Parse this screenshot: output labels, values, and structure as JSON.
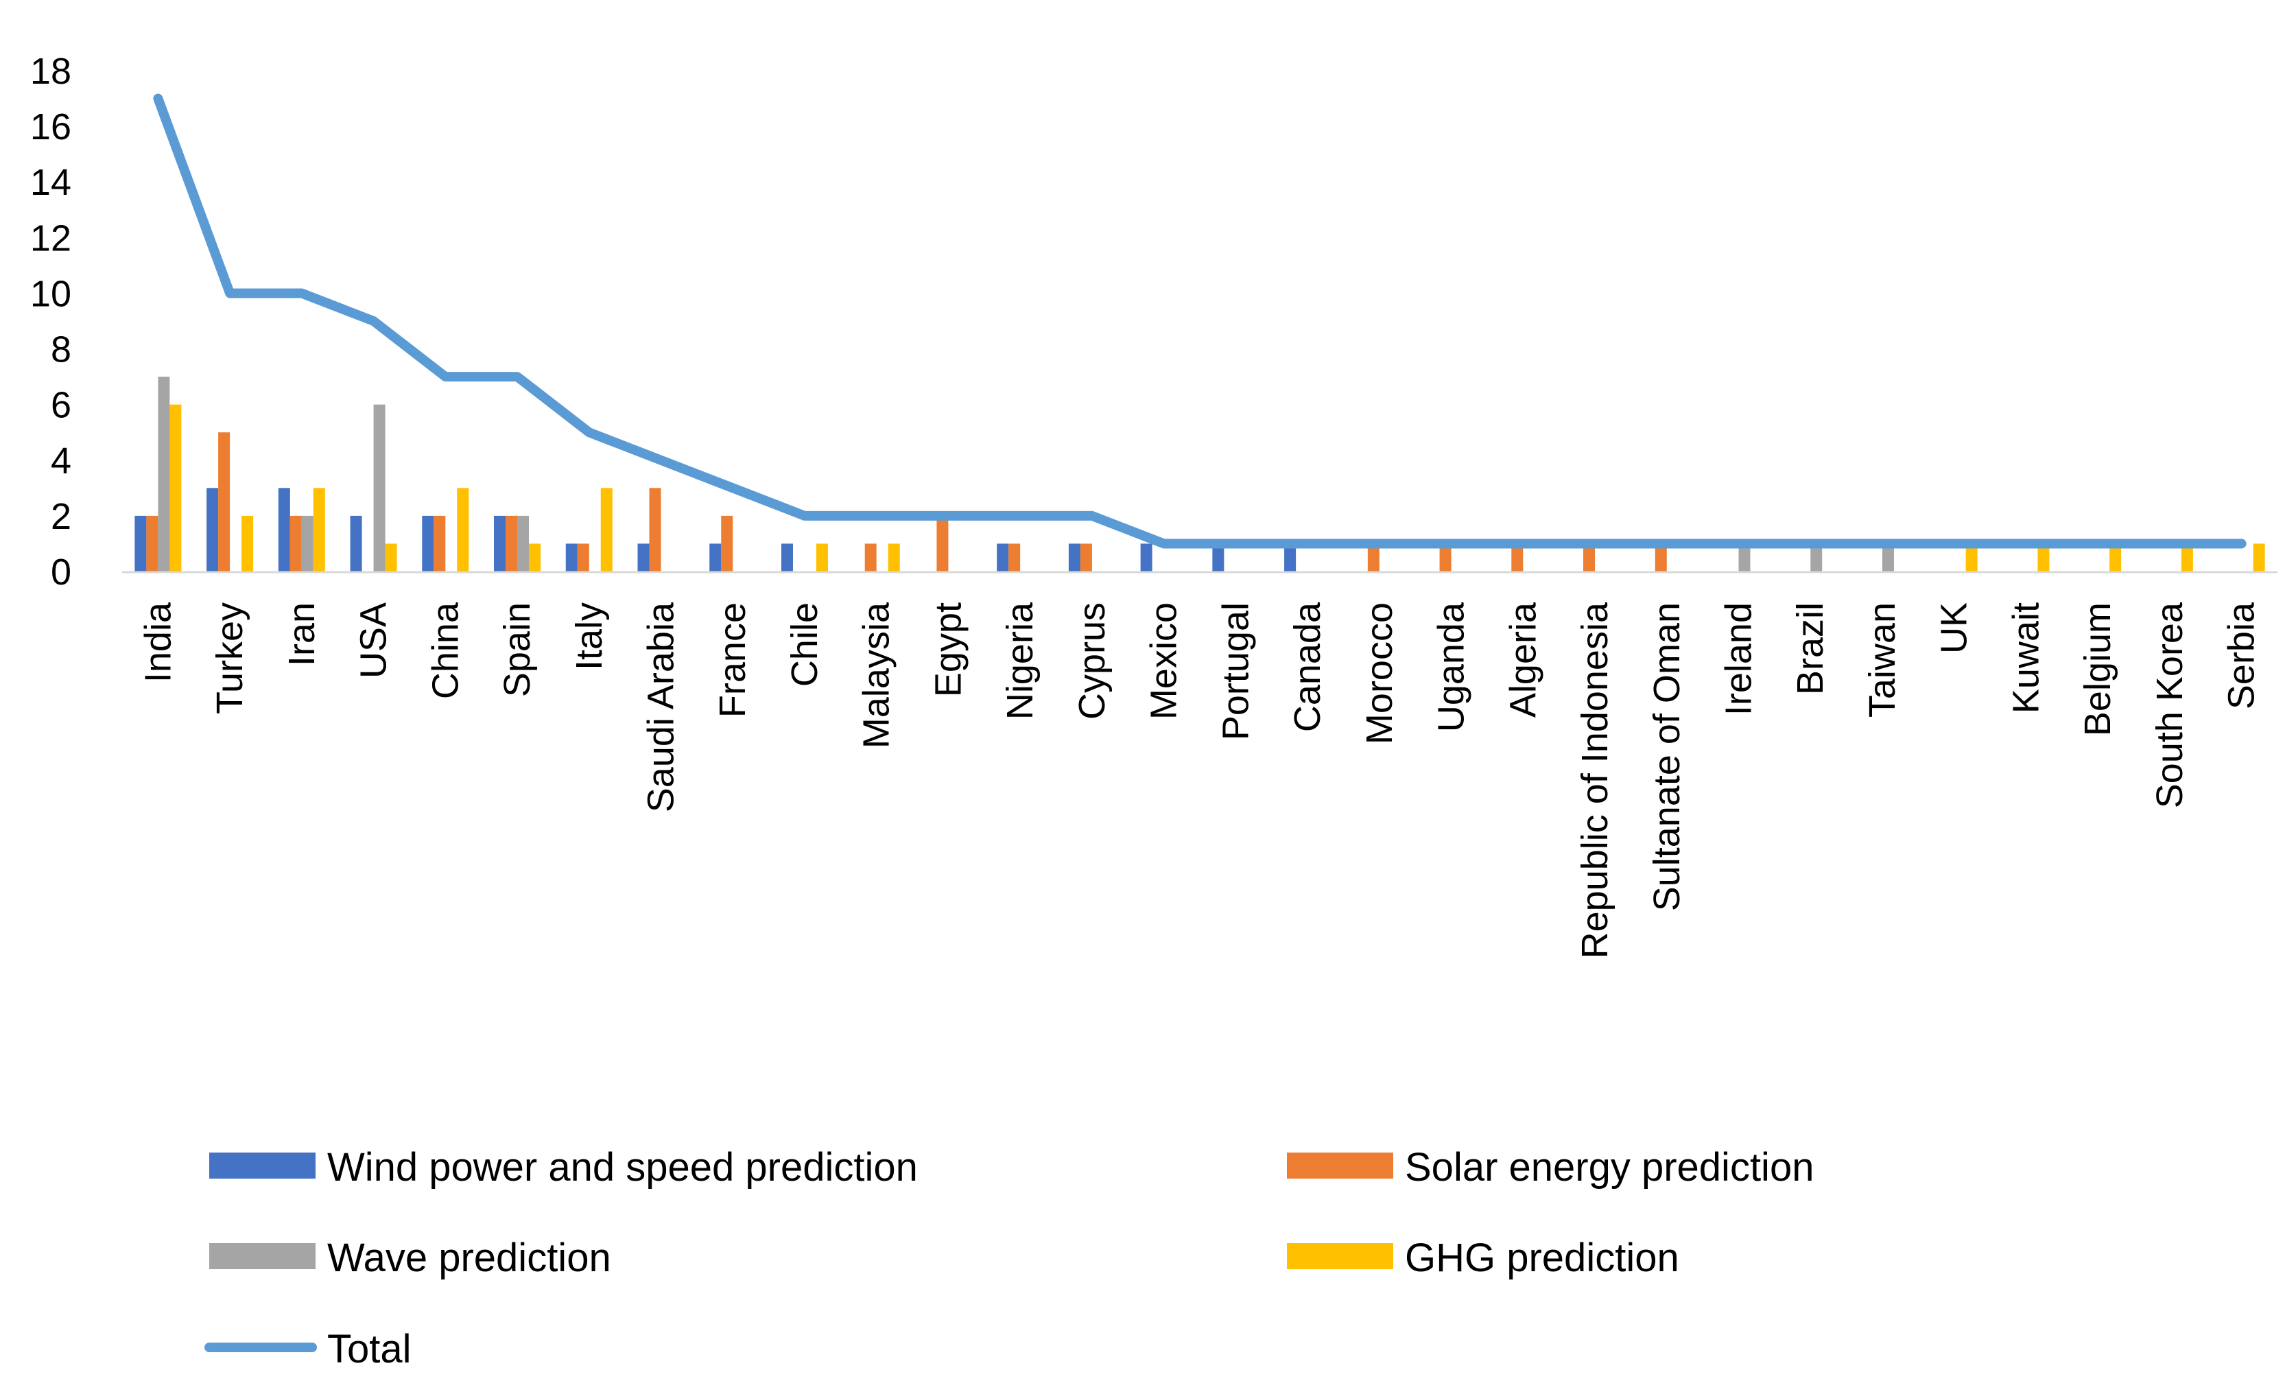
{
  "chart_data": {
    "type": "bar",
    "title": "",
    "xlabel": "",
    "ylabel": "",
    "ylim": [
      0,
      18
    ],
    "yticks": [
      0,
      2,
      4,
      6,
      8,
      10,
      12,
      14,
      16,
      18
    ],
    "grid": false,
    "legend_position": "bottom",
    "categories": [
      "India",
      "Turkey",
      "Iran",
      "USA",
      "China",
      "Spain",
      "Italy",
      "Saudi Arabia",
      "France",
      "Chile",
      "Malaysia",
      "Egypt",
      "Nigeria",
      "Cyprus",
      "Mexico",
      "Portugal",
      "Canada",
      "Morocco",
      "Uganda",
      "Algeria",
      "Republic of Indonesia",
      "Sultanate of Oman",
      "Ireland",
      "Brazil",
      "Taiwan",
      "UK",
      "Kuwait",
      "Belgium",
      "South Korea",
      "Serbia"
    ],
    "series": [
      {
        "name": "Wind power and speed prediction",
        "kind": "bar",
        "color": "#4472C4",
        "values": [
          2,
          3,
          3,
          2,
          2,
          2,
          1,
          1,
          1,
          1,
          0,
          0,
          1,
          1,
          1,
          1,
          1,
          0,
          0,
          0,
          0,
          0,
          0,
          0,
          0,
          0,
          0,
          0,
          0,
          0
        ]
      },
      {
        "name": "Solar energy prediction",
        "kind": "bar",
        "color": "#ED7D31",
        "values": [
          2,
          5,
          2,
          0,
          2,
          2,
          1,
          3,
          2,
          0,
          1,
          2,
          1,
          1,
          0,
          0,
          0,
          1,
          1,
          1,
          1,
          1,
          0,
          0,
          0,
          0,
          0,
          0,
          0,
          0
        ]
      },
      {
        "name": "Wave prediction",
        "kind": "bar",
        "color": "#A5A5A5",
        "values": [
          7,
          0,
          2,
          6,
          0,
          2,
          0,
          0,
          0,
          0,
          0,
          0,
          0,
          0,
          0,
          0,
          0,
          0,
          0,
          0,
          0,
          0,
          1,
          1,
          1,
          0,
          0,
          0,
          0,
          0
        ]
      },
      {
        "name": "GHG prediction",
        "kind": "bar",
        "color": "#FFC000",
        "values": [
          6,
          2,
          3,
          1,
          3,
          1,
          3,
          0,
          0,
          1,
          1,
          0,
          0,
          0,
          0,
          0,
          0,
          0,
          0,
          0,
          0,
          0,
          0,
          0,
          0,
          1,
          1,
          1,
          1,
          1
        ]
      },
      {
        "name": "Total",
        "kind": "line",
        "color": "#5B9BD5",
        "values": [
          17,
          10,
          10,
          9,
          7,
          7,
          5,
          4,
          3,
          2,
          2,
          2,
          2,
          2,
          1,
          1,
          1,
          1,
          1,
          1,
          1,
          1,
          1,
          1,
          1,
          1,
          1,
          1,
          1,
          1
        ]
      }
    ]
  }
}
